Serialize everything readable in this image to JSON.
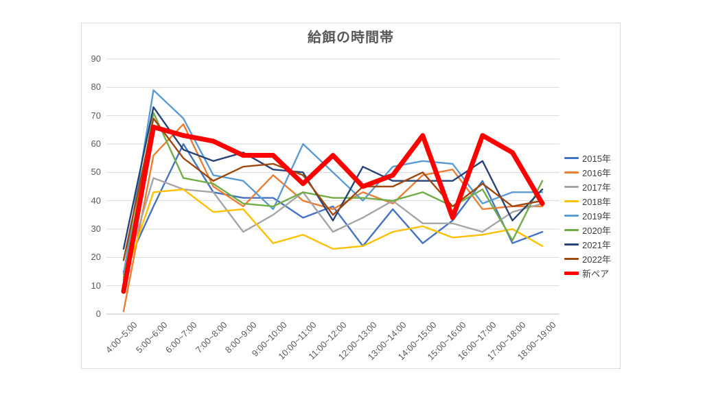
{
  "chart": {
    "title": "給餌の時間帯",
    "title_color": "#595959",
    "axis_label_color": "#595959",
    "gridline_color": "#d9d9d9",
    "axis_line_color": "#bfbfbf",
    "background": "#ffffff",
    "legend_labels": [
      "2015年",
      "2016年",
      "2017年",
      "2018年",
      "2019年",
      "2020年",
      "2021年",
      "2022年",
      "新ペア"
    ]
  },
  "chart_data": {
    "type": "line",
    "title": "給餌の時間帯",
    "xlabel": "",
    "ylabel": "",
    "ylim": [
      0,
      90
    ],
    "ytick_step": 10,
    "grid": true,
    "legend_position": "right",
    "categories": [
      "4:00~5:00",
      "5:00~6:00",
      "6:00~7:00",
      "7:00~8:00",
      "8:00~9:00",
      "9:00~10:00",
      "10:00~11:00",
      "11:00~12:00",
      "12:00~13:00",
      "13:00~14:00",
      "14:00~15:00",
      "15:00~16:00",
      "16:00~17:00",
      "17:00~18:00",
      "18:00~19:00"
    ],
    "series": [
      {
        "name": "2015年",
        "color": "#4472C4",
        "width": 2.4,
        "values": [
          15,
          38,
          60,
          43,
          41,
          41,
          34,
          38,
          24,
          37,
          25,
          33,
          47,
          25,
          29
        ]
      },
      {
        "name": "2016年",
        "color": "#ED7D31",
        "width": 2.4,
        "values": [
          1,
          56,
          67,
          45,
          38,
          49,
          40,
          37,
          43,
          39,
          49,
          51,
          37,
          38,
          38
        ]
      },
      {
        "name": "2017年",
        "color": "#A5A5A5",
        "width": 2.4,
        "values": [
          13,
          48,
          44,
          43,
          29,
          35,
          43,
          29,
          34,
          40,
          32,
          32,
          29,
          36,
          39
        ]
      },
      {
        "name": "2018年",
        "color": "#FFC000",
        "width": 2.4,
        "values": [
          12,
          43,
          44,
          36,
          37,
          25,
          28,
          23,
          24,
          29,
          31,
          27,
          28,
          30,
          24
        ]
      },
      {
        "name": "2019年",
        "color": "#5B9BD5",
        "width": 2.4,
        "values": [
          14,
          79,
          69,
          49,
          47,
          37,
          60,
          50,
          40,
          52,
          54,
          53,
          39,
          43,
          43
        ]
      },
      {
        "name": "2020年",
        "color": "#70AD47",
        "width": 2.4,
        "values": [
          12,
          71,
          48,
          46,
          39,
          38,
          43,
          41,
          41,
          40,
          43,
          38,
          44,
          26,
          47
        ]
      },
      {
        "name": "2021年",
        "color": "#264478",
        "width": 2.4,
        "values": [
          23,
          73,
          58,
          54,
          57,
          51,
          50,
          33,
          52,
          47,
          47,
          47,
          54,
          33,
          44
        ]
      },
      {
        "name": "2022年",
        "color": "#9E480E",
        "width": 2.4,
        "values": [
          19,
          69,
          55,
          47,
          52,
          53,
          49,
          35,
          45,
          45,
          50,
          38,
          46,
          38,
          40
        ]
      },
      {
        "name": "新ペア",
        "color": "#FF0000",
        "width": 7,
        "values": [
          8,
          66,
          63,
          61,
          56,
          56,
          46,
          56,
          45,
          49,
          63,
          34,
          63,
          57,
          39
        ]
      }
    ]
  }
}
